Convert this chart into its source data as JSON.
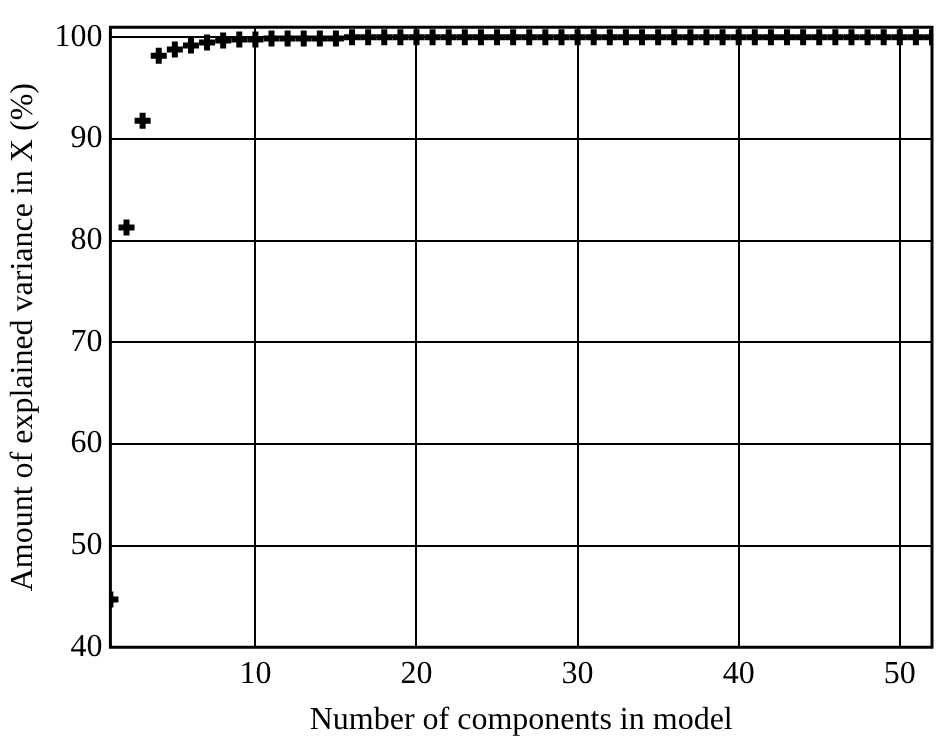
{
  "chart_data": {
    "type": "scatter",
    "xlabel": "Number of components in model",
    "ylabel": "Amount of explained variance in X (%)",
    "x": [
      1,
      2,
      3,
      4,
      5,
      6,
      7,
      8,
      9,
      10,
      11,
      12,
      13,
      14,
      15,
      16,
      17,
      18,
      19,
      20,
      21,
      22,
      23,
      24,
      25,
      26,
      27,
      28,
      29,
      30,
      31,
      32,
      33,
      34,
      35,
      36,
      37,
      38,
      39,
      40,
      41,
      42,
      43,
      44,
      45,
      46,
      47,
      48,
      49,
      50,
      51,
      52
    ],
    "series": [
      {
        "color": "#000000",
        "values": [
          44.7,
          81.3,
          91.8,
          98.2,
          98.8,
          99.2,
          99.5,
          99.7,
          99.8,
          99.8,
          99.9,
          99.9,
          99.9,
          99.9,
          99.9,
          100,
          100,
          100,
          100,
          100,
          100,
          100,
          100,
          100,
          100,
          100,
          100,
          100,
          100,
          100,
          100,
          100,
          100,
          100,
          100,
          100,
          100,
          100,
          100,
          100,
          100,
          100,
          100,
          100,
          100,
          100,
          100,
          100,
          100,
          100,
          100,
          100
        ]
      }
    ],
    "xlim": [
      1,
      52
    ],
    "xticks": [
      10,
      20,
      30,
      40,
      50
    ],
    "ylim": [
      40,
      101
    ],
    "yticks": [
      40,
      50,
      60,
      70,
      80,
      90,
      100
    ],
    "grid": true,
    "marker": "cross",
    "legend": false
  }
}
